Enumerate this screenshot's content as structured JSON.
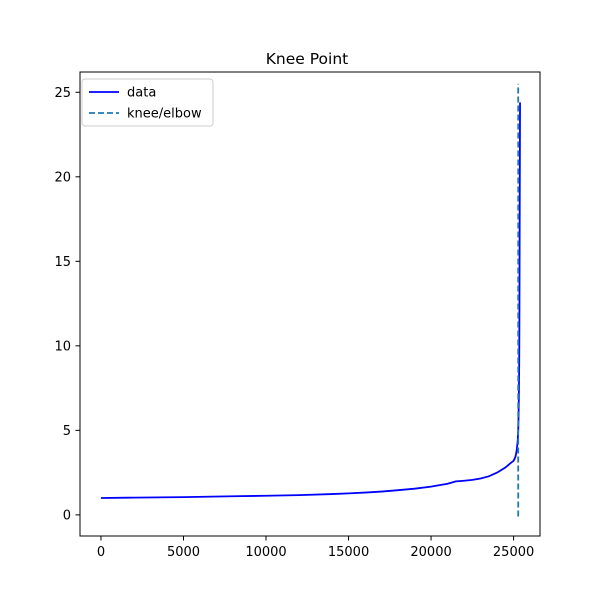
{
  "chart_data": {
    "type": "line",
    "title": "Knee Point",
    "xlabel": "",
    "ylabel": "",
    "xlim": [
      -1270,
      26600
    ],
    "ylim": [
      -1.25,
      26.2
    ],
    "xticks": [
      0,
      5000,
      10000,
      15000,
      20000,
      25000
    ],
    "xtick_labels": [
      "0",
      "5000",
      "10000",
      "15000",
      "20000",
      "25000"
    ],
    "yticks": [
      0,
      5,
      10,
      15,
      20,
      25
    ],
    "ytick_labels": [
      "0",
      "5",
      "10",
      "15",
      "20",
      "25"
    ],
    "grid": false,
    "legend_position": "top-left",
    "series": [
      {
        "name": "data",
        "style": "solid",
        "color": "#0000ff",
        "x": [
          0,
          2000,
          5000,
          8000,
          10000,
          12000,
          14000,
          15000,
          16000,
          17000,
          18000,
          19000,
          20000,
          21000,
          21500,
          22000,
          22500,
          23000,
          23500,
          24000,
          24500,
          24800,
          25000,
          25100,
          25150,
          25200,
          25250,
          25280,
          25300,
          25320,
          25340,
          25350,
          25360,
          25370,
          25380,
          25390
        ],
        "y": [
          1.0,
          1.02,
          1.05,
          1.1,
          1.13,
          1.17,
          1.23,
          1.27,
          1.32,
          1.38,
          1.46,
          1.55,
          1.67,
          1.84,
          1.98,
          2.02,
          2.07,
          2.15,
          2.28,
          2.5,
          2.8,
          3.05,
          3.2,
          3.4,
          3.6,
          3.9,
          4.4,
          5.0,
          5.8,
          7.0,
          9.0,
          11.0,
          14.0,
          18.0,
          21.0,
          24.4
        ]
      },
      {
        "name": "knee/elbow",
        "style": "dashed",
        "color": "#1f77b4",
        "x": [
          25280,
          25280
        ],
        "y": [
          -0.1,
          25.5
        ]
      }
    ]
  }
}
